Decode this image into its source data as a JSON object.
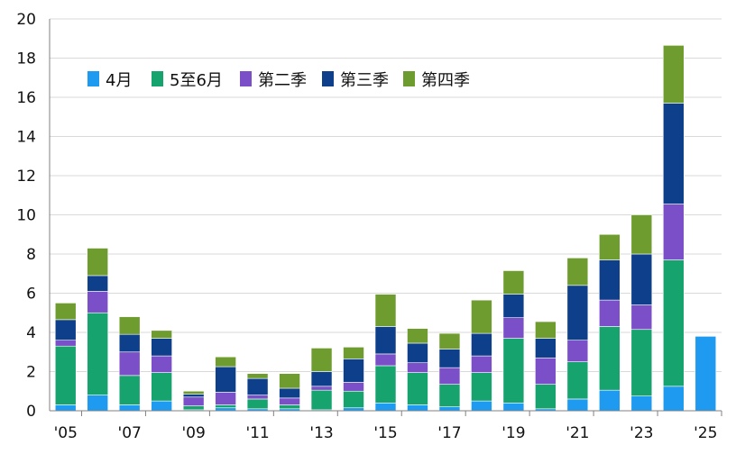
{
  "chart_data": {
    "type": "bar",
    "stacked": true,
    "title": "",
    "xlabel": "",
    "ylabel": "",
    "ylim": [
      0,
      20
    ],
    "yticks": [
      0,
      2,
      4,
      6,
      8,
      10,
      12,
      14,
      16,
      18,
      20
    ],
    "grid": "horizontal",
    "legend_position": "top-left",
    "categories": [
      "'05",
      "'06",
      "'07",
      "'08",
      "'09",
      "'10",
      "'11",
      "'12",
      "'13",
      "'14",
      "'15",
      "'16",
      "'17",
      "'18",
      "'19",
      "'20",
      "'21",
      "'22",
      "'23",
      "'24",
      "'25"
    ],
    "xtick_labels": [
      "'05",
      "'07",
      "'09",
      "'11",
      "'13",
      "'15",
      "'17",
      "'19",
      "'21",
      "'23",
      "'25"
    ],
    "series": [
      {
        "name": "4月",
        "color": "#1e9bf0",
        "values": [
          0.3,
          0.8,
          0.3,
          0.5,
          0.05,
          0.15,
          0.1,
          0.1,
          0.05,
          0.15,
          0.4,
          0.3,
          0.2,
          0.5,
          0.4,
          0.1,
          0.6,
          1.05,
          0.75,
          1.25,
          3.8
        ]
      },
      {
        "name": "5至6月",
        "color": "#16a36e",
        "values": [
          3.0,
          4.2,
          1.5,
          1.45,
          0.2,
          0.15,
          0.5,
          0.2,
          1.0,
          0.85,
          1.9,
          1.65,
          1.15,
          1.45,
          3.3,
          1.25,
          1.9,
          3.25,
          3.4,
          6.45,
          0
        ]
      },
      {
        "name": "第二季",
        "color": "#7b4fc8",
        "values": [
          0.3,
          1.1,
          1.2,
          0.85,
          0.45,
          0.65,
          0.2,
          0.35,
          0.2,
          0.45,
          0.6,
          0.5,
          0.85,
          0.85,
          1.05,
          1.35,
          1.1,
          1.35,
          1.25,
          2.85,
          0
        ]
      },
      {
        "name": "第三季",
        "color": "#0d3f8a",
        "values": [
          1.05,
          0.8,
          0.9,
          0.9,
          0.15,
          1.3,
          0.85,
          0.5,
          0.75,
          1.2,
          1.4,
          1.0,
          0.95,
          1.15,
          1.2,
          1.0,
          2.8,
          2.05,
          2.6,
          5.15,
          0
        ]
      },
      {
        "name": "第四季",
        "color": "#6e9c2e",
        "values": [
          0.85,
          1.4,
          0.9,
          0.4,
          0.15,
          0.5,
          0.25,
          0.75,
          1.2,
          0.6,
          1.65,
          0.75,
          0.8,
          1.7,
          1.2,
          0.85,
          1.4,
          1.3,
          2.0,
          2.95,
          0
        ]
      }
    ]
  }
}
